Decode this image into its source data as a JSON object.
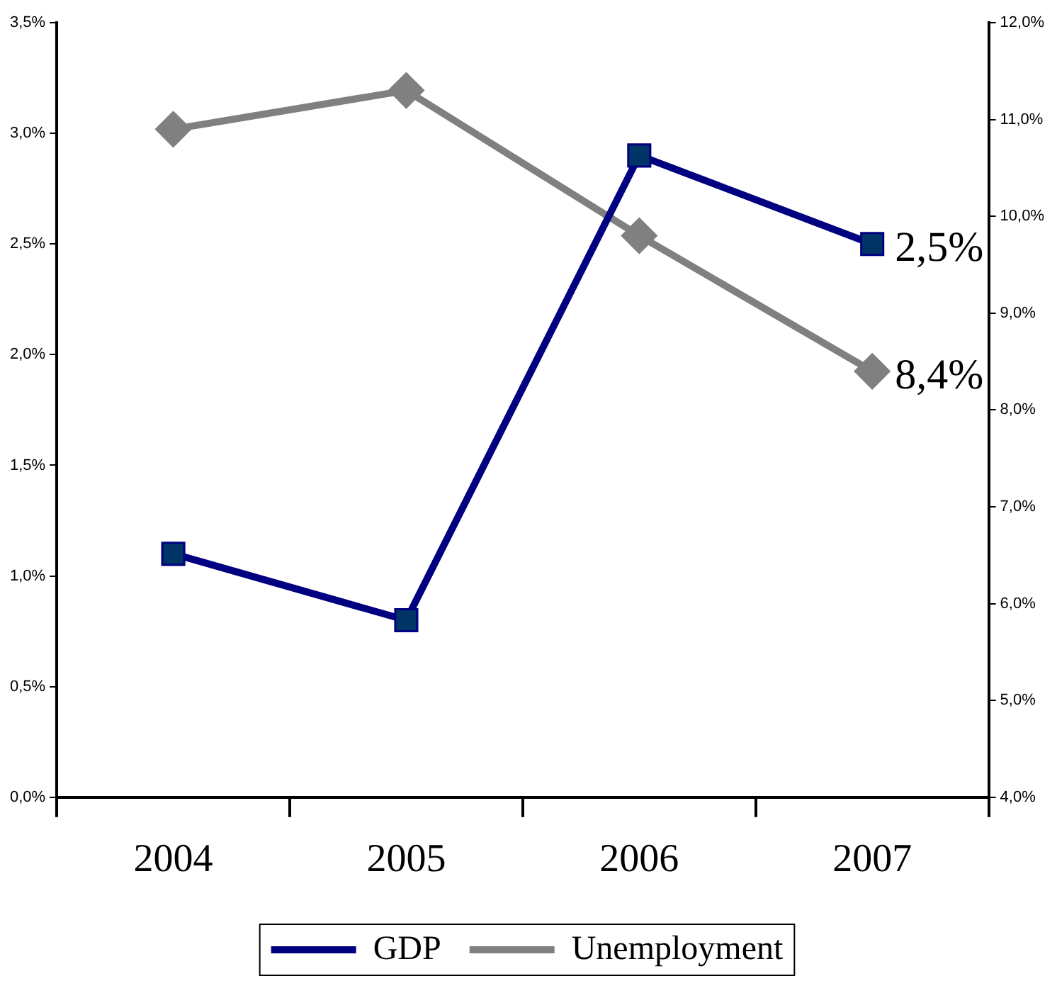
{
  "chart_data": {
    "type": "line",
    "categories": [
      "2004",
      "2005",
      "2006",
      "2007"
    ],
    "series": [
      {
        "name": "GDP",
        "color": "#000080",
        "marker": "square",
        "values": [
          1.1,
          0.8,
          2.9,
          2.5
        ],
        "value_labels": [
          null,
          null,
          null,
          "2,5%"
        ]
      },
      {
        "name": "Unemployment",
        "color": "#808080",
        "marker": "diamond",
        "axis": "y2",
        "values": [
          10.9,
          11.3,
          9.8,
          8.4
        ],
        "value_labels": [
          null,
          null,
          null,
          "8,4%"
        ]
      }
    ],
    "ylim": [
      0,
      3.5
    ],
    "yticks": [
      {
        "value": 0,
        "label": "0,0%"
      },
      {
        "value": 0.5,
        "label": "0,5%"
      },
      {
        "value": 1,
        "label": "1,0%"
      },
      {
        "value": 1.5,
        "label": "1,5%"
      },
      {
        "value": 2,
        "label": "2,0%"
      },
      {
        "value": 2.5,
        "label": "2,5%"
      },
      {
        "value": 3,
        "label": "3,0%"
      },
      {
        "value": 3.5,
        "label": "3,5%"
      }
    ],
    "y2lim": [
      4,
      12
    ],
    "y2ticks": [
      {
        "value": 4,
        "label": "4,0%"
      },
      {
        "value": 5,
        "label": "5,0%"
      },
      {
        "value": 6,
        "label": "6,0%"
      },
      {
        "value": 7,
        "label": "7,0%"
      },
      {
        "value": 8,
        "label": "8,0%"
      },
      {
        "value": 9,
        "label": "9,0%"
      },
      {
        "value": 10,
        "label": "10,0%"
      },
      {
        "value": 11,
        "label": "11,0%"
      },
      {
        "value": 12,
        "label": "12,0%"
      }
    ],
    "grid": false,
    "legend": "bottom",
    "line_style": "solid"
  }
}
